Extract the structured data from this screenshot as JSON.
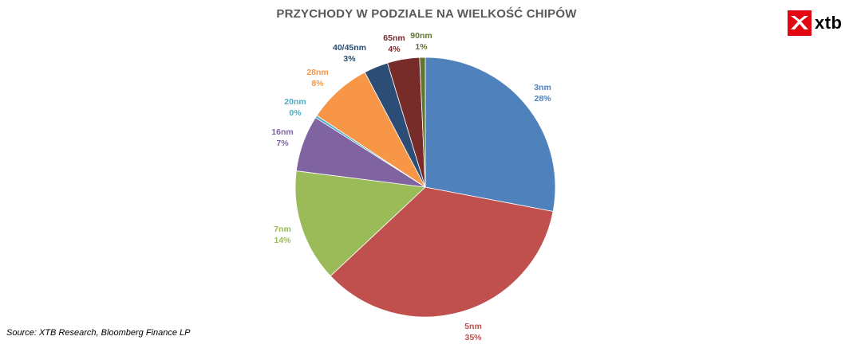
{
  "chart_data": {
    "type": "pie",
    "title": "PRZYCHODY W PODZIALE NA WIELKOŚĆ CHIPÓW",
    "slices": [
      {
        "label": "3nm",
        "value": 28,
        "value_label": "28%",
        "color": "#4F81BD"
      },
      {
        "label": "5nm",
        "value": 35,
        "value_label": "35%",
        "color": "#C0504D"
      },
      {
        "label": "7nm",
        "value": 14,
        "value_label": "14%",
        "color": "#9BBB59"
      },
      {
        "label": "16nm",
        "value": 7,
        "value_label": "7%",
        "color": "#8064A2"
      },
      {
        "label": "20nm",
        "value": 0.3,
        "value_label": "0%",
        "color": "#4BACC6"
      },
      {
        "label": "28nm",
        "value": 8,
        "value_label": "8%",
        "color": "#F79646"
      },
      {
        "label": "40/45nm",
        "value": 3,
        "value_label": "3%",
        "color": "#2C4D75"
      },
      {
        "label": "65nm",
        "value": 4,
        "value_label": "4%",
        "color": "#772C2A"
      },
      {
        "label": "90nm",
        "value": 0.7,
        "value_label": "1%",
        "color": "#5F7530"
      }
    ],
    "start_angle": "12 o'clock",
    "direction": "clockwise",
    "legend": "none"
  },
  "source": "Source: XTB Research, Bloomberg Finance LP",
  "logo": {
    "text": "xtb",
    "mark_color": "#E30613"
  }
}
